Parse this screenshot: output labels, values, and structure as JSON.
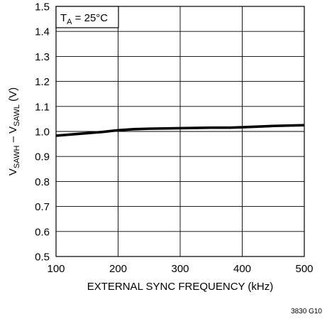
{
  "chart_data": {
    "type": "line",
    "title": "",
    "annotation": {
      "prefix": "T",
      "subscript": "A",
      "suffix": " = 25°C"
    },
    "xlabel": "EXTERNAL SYNC FREQUENCY (kHz)",
    "ylabel_parts": [
      {
        "text": "V",
        "sub": false
      },
      {
        "text": "SAWH",
        "sub": true
      },
      {
        "text": " – V",
        "sub": false
      },
      {
        "text": "SAWL",
        "sub": true
      },
      {
        "text": " (V)",
        "sub": false
      }
    ],
    "xlim": [
      100,
      500
    ],
    "ylim": [
      0.5,
      1.5
    ],
    "xticks": [
      100,
      200,
      300,
      400,
      500
    ],
    "xtick_labels": [
      "100",
      "200",
      "300",
      "400",
      "500"
    ],
    "yticks": [
      0.5,
      0.6,
      0.7,
      0.8,
      0.9,
      1.0,
      1.1,
      1.2,
      1.3,
      1.4,
      1.5
    ],
    "ytick_labels": [
      "0.5",
      "0.6",
      "0.7",
      "0.8",
      "0.9",
      "1.0",
      "1.1",
      "1.2",
      "1.3",
      "1.4",
      "1.5"
    ],
    "grid": true,
    "x_grid_values": [
      200,
      300,
      400
    ],
    "y_grid_values": [
      0.6,
      0.7,
      0.8,
      0.9,
      1.0,
      1.1,
      1.2,
      1.3,
      1.4
    ],
    "series": [
      {
        "x": [
          100,
          125,
          150,
          175,
          200,
          225,
          250,
          300,
          350,
          380,
          400,
          450,
          500
        ],
        "y": [
          0.983,
          0.988,
          0.993,
          0.998,
          1.005,
          1.009,
          1.011,
          1.013,
          1.015,
          1.015,
          1.017,
          1.022,
          1.025
        ],
        "color": "#000000"
      }
    ],
    "figure_code": "3830 G10"
  }
}
